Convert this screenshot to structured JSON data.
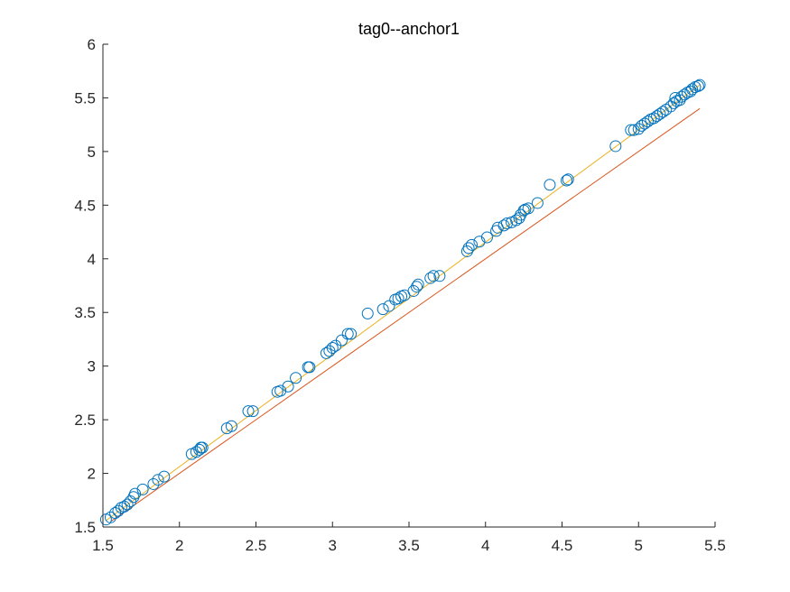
{
  "chart_data": {
    "type": "scatter",
    "title": "tag0--anchor1",
    "xlabel": "",
    "ylabel": "",
    "xlim": [
      1.5,
      5.5
    ],
    "ylim": [
      1.5,
      6
    ],
    "xticks": [
      "1.5",
      "2",
      "2.5",
      "3",
      "3.5",
      "4",
      "4.5",
      "5",
      "5.5"
    ],
    "yticks": [
      "1.5",
      "2",
      "2.5",
      "3",
      "3.5",
      "4",
      "4.5",
      "5",
      "5.5",
      "6"
    ],
    "grid": false,
    "legend": "none",
    "colors": {
      "points": "#0072BD",
      "identity_line": "#D95319",
      "fit_line": "#EDB120",
      "axis": "#262626"
    },
    "series": [
      {
        "kind": "scatter",
        "marker": "open-circle",
        "points": [
          [
            1.52,
            1.57
          ],
          [
            1.55,
            1.59
          ],
          [
            1.58,
            1.63
          ],
          [
            1.6,
            1.65
          ],
          [
            1.62,
            1.68
          ],
          [
            1.64,
            1.69
          ],
          [
            1.66,
            1.71
          ],
          [
            1.68,
            1.74
          ],
          [
            1.7,
            1.78
          ],
          [
            1.71,
            1.81
          ],
          [
            1.76,
            1.85
          ],
          [
            1.83,
            1.9
          ],
          [
            1.86,
            1.94
          ],
          [
            1.9,
            1.97
          ],
          [
            2.08,
            2.18
          ],
          [
            2.11,
            2.2
          ],
          [
            2.13,
            2.22
          ],
          [
            2.14,
            2.24
          ],
          [
            2.15,
            2.24
          ],
          [
            2.31,
            2.42
          ],
          [
            2.34,
            2.44
          ],
          [
            2.45,
            2.58
          ],
          [
            2.48,
            2.58
          ],
          [
            2.64,
            2.76
          ],
          [
            2.66,
            2.77
          ],
          [
            2.71,
            2.81
          ],
          [
            2.76,
            2.89
          ],
          [
            2.84,
            2.99
          ],
          [
            2.85,
            2.99
          ],
          [
            2.96,
            3.12
          ],
          [
            2.98,
            3.14
          ],
          [
            3.0,
            3.17
          ],
          [
            3.02,
            3.19
          ],
          [
            3.06,
            3.24
          ],
          [
            3.1,
            3.3
          ],
          [
            3.12,
            3.3
          ],
          [
            3.23,
            3.49
          ],
          [
            3.33,
            3.53
          ],
          [
            3.37,
            3.56
          ],
          [
            3.41,
            3.62
          ],
          [
            3.43,
            3.63
          ],
          [
            3.45,
            3.65
          ],
          [
            3.47,
            3.66
          ],
          [
            3.53,
            3.7
          ],
          [
            3.55,
            3.74
          ],
          [
            3.56,
            3.76
          ],
          [
            3.64,
            3.82
          ],
          [
            3.66,
            3.84
          ],
          [
            3.7,
            3.84
          ],
          [
            3.88,
            4.07
          ],
          [
            3.89,
            4.1
          ],
          [
            3.91,
            4.13
          ],
          [
            3.96,
            4.16
          ],
          [
            4.01,
            4.2
          ],
          [
            4.07,
            4.26
          ],
          [
            4.08,
            4.29
          ],
          [
            4.12,
            4.31
          ],
          [
            4.14,
            4.33
          ],
          [
            4.17,
            4.34
          ],
          [
            4.2,
            4.36
          ],
          [
            4.22,
            4.38
          ],
          [
            4.23,
            4.41
          ],
          [
            4.25,
            4.45
          ],
          [
            4.26,
            4.46
          ],
          [
            4.28,
            4.47
          ],
          [
            4.34,
            4.52
          ],
          [
            4.42,
            4.69
          ],
          [
            4.53,
            4.73
          ],
          [
            4.54,
            4.74
          ],
          [
            4.85,
            5.05
          ],
          [
            4.95,
            5.2
          ],
          [
            4.97,
            5.2
          ],
          [
            5.0,
            5.21
          ],
          [
            5.02,
            5.24
          ],
          [
            5.04,
            5.26
          ],
          [
            5.06,
            5.28
          ],
          [
            5.08,
            5.3
          ],
          [
            5.1,
            5.31
          ],
          [
            5.12,
            5.33
          ],
          [
            5.14,
            5.35
          ],
          [
            5.16,
            5.37
          ],
          [
            5.18,
            5.39
          ],
          [
            5.21,
            5.42
          ],
          [
            5.23,
            5.45
          ],
          [
            5.24,
            5.5
          ],
          [
            5.25,
            5.47
          ],
          [
            5.27,
            5.48
          ],
          [
            5.28,
            5.51
          ],
          [
            5.3,
            5.53
          ],
          [
            5.32,
            5.55
          ],
          [
            5.34,
            5.56
          ],
          [
            5.35,
            5.58
          ],
          [
            5.37,
            5.6
          ],
          [
            5.39,
            5.61
          ],
          [
            5.4,
            5.62
          ]
        ]
      },
      {
        "kind": "line",
        "role": "identity",
        "x": [
          1.55,
          5.4
        ],
        "y": [
          1.55,
          5.4
        ]
      },
      {
        "kind": "line",
        "role": "fit",
        "x": [
          1.52,
          5.4
        ],
        "y": [
          1.56,
          5.62
        ]
      }
    ]
  }
}
